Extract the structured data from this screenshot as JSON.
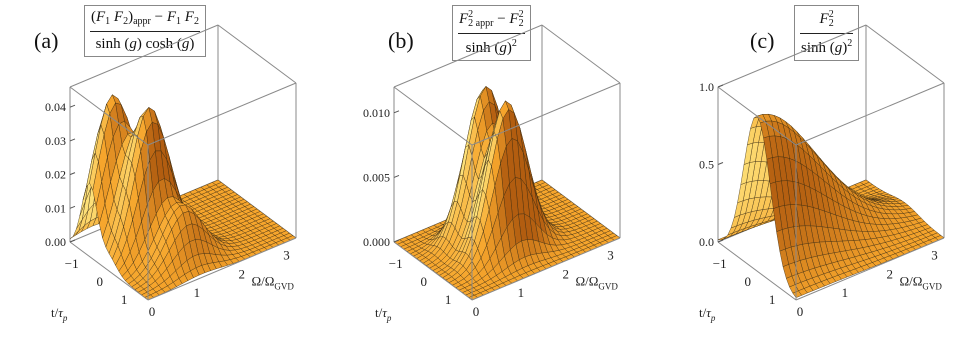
{
  "chart_data": [
    {
      "type": "surface3d",
      "panel_label": "(a)",
      "formula": {
        "numerator": "(F1 F2)appr − F1 F2",
        "denominator": "sinh (g) cosh (g)"
      },
      "xlabel": "t/τp",
      "ylabel": "Ω/ΩGVD",
      "x_ticks": [
        "−1",
        "0",
        "1"
      ],
      "y_ticks": [
        "0",
        "1",
        "2",
        "3"
      ],
      "z_ticks": [
        "0.00",
        "0.01",
        "0.02",
        "0.03",
        "0.04"
      ],
      "xlim": [
        -1.6,
        1.6
      ],
      "ylim": [
        0,
        3.3
      ],
      "zlim": [
        0,
        0.046
      ],
      "peaks": [
        {
          "t": -0.8,
          "omega": 0.5,
          "height": 0.044
        },
        {
          "t": 0.0,
          "omega": 0.9,
          "height": 0.042
        },
        {
          "t": 0.85,
          "omega": 1.2,
          "height": 0.016
        }
      ]
    },
    {
      "type": "surface3d",
      "panel_label": "(b)",
      "formula": {
        "numerator": "F2² appr − F2²",
        "denominator": "sinh (g)²"
      },
      "xlabel": "t/τp",
      "ylabel": "Ω/ΩGVD",
      "x_ticks": [
        "−1",
        "0",
        "1"
      ],
      "y_ticks": [
        "0",
        "1",
        "2",
        "3"
      ],
      "z_ticks": [
        "0.000",
        "0.005",
        "0.010"
      ],
      "xlim": [
        -1.6,
        1.6
      ],
      "ylim": [
        0,
        3.3
      ],
      "zlim": [
        0,
        0.012
      ],
      "peaks": [
        {
          "t": -0.45,
          "omega": 1.4,
          "height": 0.0115
        },
        {
          "t": 0.45,
          "omega": 1.4,
          "height": 0.0115
        }
      ]
    },
    {
      "type": "surface3d",
      "panel_label": "(c)",
      "formula": {
        "numerator": "F2²",
        "denominator": "sinh (g)²"
      },
      "xlabel": "t/τp",
      "ylabel": "Ω/ΩGVD",
      "x_ticks": [
        "−1",
        "0",
        "1"
      ],
      "y_ticks": [
        "0",
        "1",
        "2",
        "3"
      ],
      "z_ticks": [
        "0.0",
        "0.5",
        "1.0"
      ],
      "xlim": [
        -1.6,
        1.6
      ],
      "ylim": [
        0,
        3.3
      ],
      "zlim": [
        0,
        1.0
      ],
      "peaks": [
        {
          "t": 0.0,
          "omega": 0.0,
          "height": 1.0,
          "omega_width": 1.3
        }
      ]
    }
  ],
  "colors": {
    "surface_light": "#fde078",
    "surface_mid": "#f6a52c",
    "surface_dark": "#b25d10",
    "mesh": "#3a2a10",
    "box": "#8a8a8a"
  }
}
